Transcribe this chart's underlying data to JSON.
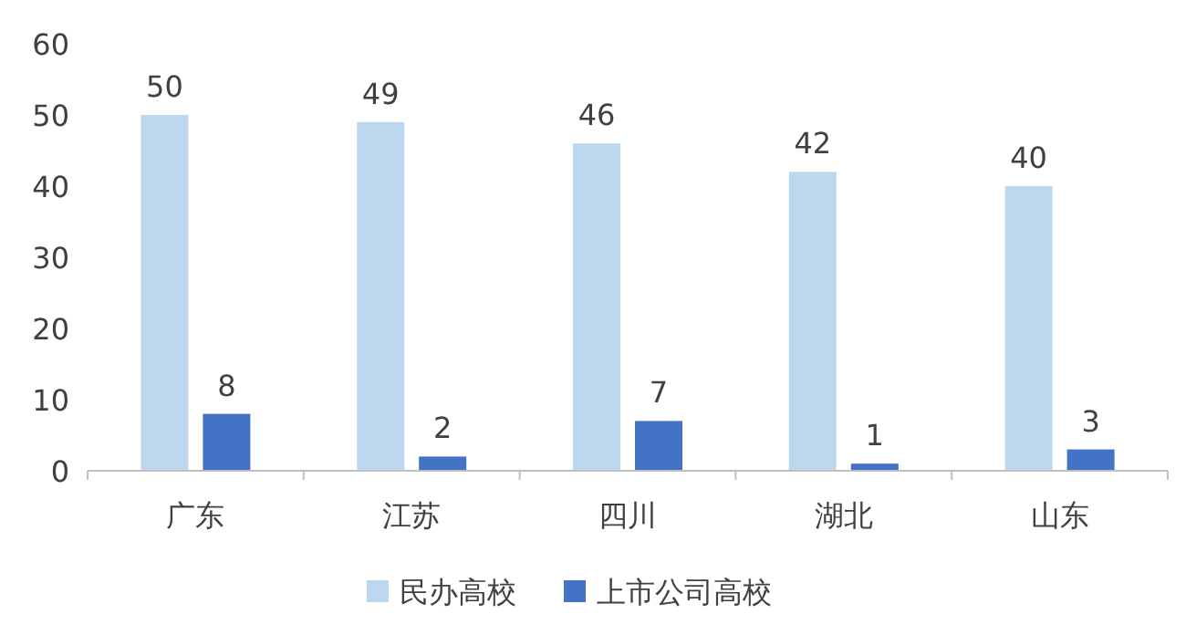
{
  "chart_data": {
    "type": "bar",
    "categories": [
      "广东",
      "江苏",
      "四川",
      "湖北",
      "山东"
    ],
    "series": [
      {
        "name": "民办高校",
        "color": "#bdd7ee",
        "values": [
          50,
          49,
          46,
          42,
          40
        ]
      },
      {
        "name": "上市公司高校",
        "color": "#4472c4",
        "values": [
          8,
          2,
          7,
          1,
          3
        ]
      }
    ],
    "ylim": [
      0,
      60
    ],
    "yticks": [
      0,
      10,
      20,
      30,
      40,
      50,
      60
    ],
    "data_labels": true,
    "legend": "bottom",
    "grid": false
  }
}
